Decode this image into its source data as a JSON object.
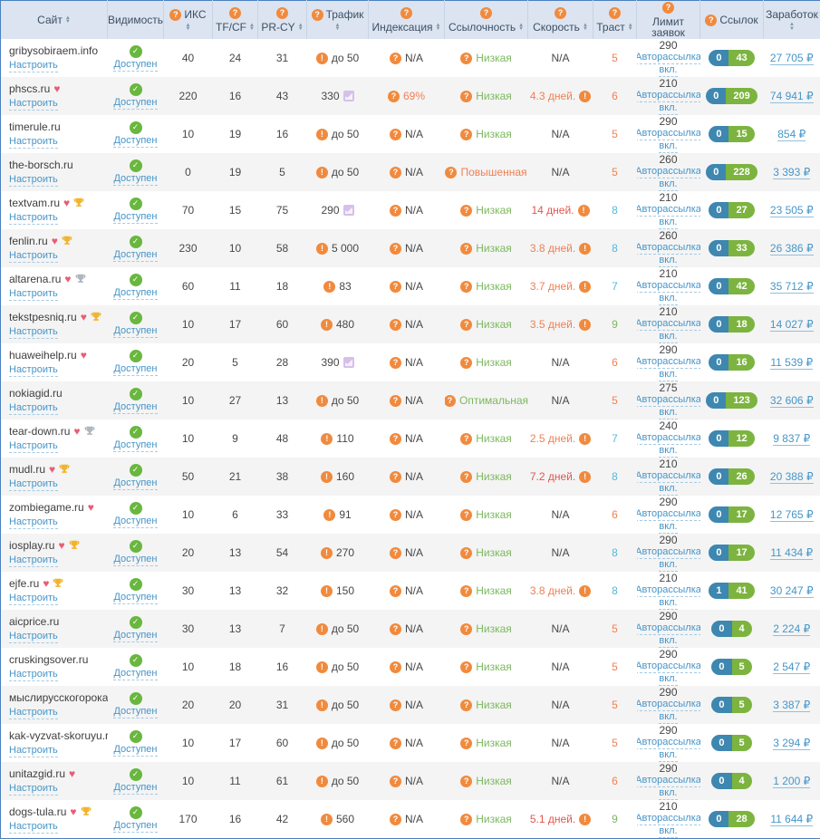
{
  "header": {
    "columns": [
      {
        "label": "Сайт",
        "q": false,
        "sort": true
      },
      {
        "label": "Видимость",
        "q": false,
        "sort": false
      },
      {
        "label": "ИКС",
        "q": true,
        "sort": true
      },
      {
        "label": "TF/CF",
        "q": true,
        "sort": true
      },
      {
        "label": "PR-CY",
        "q": true,
        "sort": true
      },
      {
        "label": "Трафик",
        "q": true,
        "sort": true
      },
      {
        "label": "Индексация",
        "q": true,
        "sort": true
      },
      {
        "label": "Ссылочность",
        "q": true,
        "sort": true
      },
      {
        "label": "Скорость",
        "q": true,
        "sort": true
      },
      {
        "label": "Траст",
        "q": true,
        "sort": true
      },
      {
        "label": "Лимит заявок",
        "q": true,
        "sort": false
      },
      {
        "label": "Ссылок",
        "q": true,
        "sort": false
      },
      {
        "label": "Заработок",
        "q": false,
        "sort": true
      }
    ]
  },
  "labels": {
    "configure": "Настроить",
    "available": "Доступен",
    "autoship": "Авторассылка",
    "autoship_on": "вкл."
  },
  "rows": [
    {
      "site": "gribysobiraem.info",
      "heart": false,
      "trophy": "none",
      "iks": "40",
      "tfcf": "24",
      "prcy": "31",
      "traffic": {
        "text": "до 50",
        "icon": "warn"
      },
      "indexation": {
        "text": "N/A",
        "color": "dark"
      },
      "linkness": {
        "text": "Низкая",
        "color": "green"
      },
      "speed": {
        "text": "N/A",
        "color": "dark",
        "warn": false
      },
      "trust": {
        "value": "5",
        "color": "orange"
      },
      "limit": {
        "value": "290"
      },
      "links": {
        "blue": "0",
        "green": "43"
      },
      "earnings": "27 705 ₽"
    },
    {
      "site": "phscs.ru",
      "heart": true,
      "trophy": "none",
      "iks": "220",
      "tfcf": "16",
      "prcy": "43",
      "traffic": {
        "text": "330",
        "icon": "chart"
      },
      "indexation": {
        "text": "69%",
        "color": "orange"
      },
      "linkness": {
        "text": "Низкая",
        "color": "green"
      },
      "speed": {
        "text": "4.3 дней.",
        "color": "orange",
        "warn": true
      },
      "trust": {
        "value": "6",
        "color": "orange"
      },
      "limit": {
        "value": "210"
      },
      "links": {
        "blue": "0",
        "green": "209"
      },
      "earnings": "74 941 ₽"
    },
    {
      "site": "timerule.ru",
      "heart": false,
      "trophy": "none",
      "iks": "10",
      "tfcf": "19",
      "prcy": "16",
      "traffic": {
        "text": "до 50",
        "icon": "warn"
      },
      "indexation": {
        "text": "N/A",
        "color": "dark"
      },
      "linkness": {
        "text": "Низкая",
        "color": "green"
      },
      "speed": {
        "text": "N/A",
        "color": "dark",
        "warn": false
      },
      "trust": {
        "value": "5",
        "color": "orange"
      },
      "limit": {
        "value": "290"
      },
      "links": {
        "blue": "0",
        "green": "15"
      },
      "earnings": "854 ₽"
    },
    {
      "site": "the-borsch.ru",
      "heart": false,
      "trophy": "none",
      "iks": "0",
      "tfcf": "19",
      "prcy": "5",
      "traffic": {
        "text": "до 50",
        "icon": "warn"
      },
      "indexation": {
        "text": "N/A",
        "color": "dark"
      },
      "linkness": {
        "text": "Повышенная",
        "color": "orange"
      },
      "speed": {
        "text": "N/A",
        "color": "dark",
        "warn": false
      },
      "trust": {
        "value": "5",
        "color": "orange"
      },
      "limit": {
        "value": "260"
      },
      "links": {
        "blue": "0",
        "green": "228"
      },
      "earnings": "3 393 ₽"
    },
    {
      "site": "textvam.ru",
      "heart": true,
      "trophy": "gold",
      "iks": "70",
      "tfcf": "15",
      "prcy": "75",
      "traffic": {
        "text": "290",
        "icon": "chart"
      },
      "indexation": {
        "text": "N/A",
        "color": "dark"
      },
      "linkness": {
        "text": "Низкая",
        "color": "green"
      },
      "speed": {
        "text": "14 дней.",
        "color": "red",
        "warn": true
      },
      "trust": {
        "value": "8",
        "color": "blue"
      },
      "limit": {
        "value": "210"
      },
      "links": {
        "blue": "0",
        "green": "27"
      },
      "earnings": "23 505 ₽"
    },
    {
      "site": "fenlin.ru",
      "heart": true,
      "trophy": "gold",
      "iks": "230",
      "tfcf": "10",
      "prcy": "58",
      "traffic": {
        "text": "5 000",
        "icon": "warn"
      },
      "indexation": {
        "text": "N/A",
        "color": "dark"
      },
      "linkness": {
        "text": "Низкая",
        "color": "green"
      },
      "speed": {
        "text": "3.8 дней.",
        "color": "orange",
        "warn": true
      },
      "trust": {
        "value": "8",
        "color": "blue"
      },
      "limit": {
        "value": "260"
      },
      "links": {
        "blue": "0",
        "green": "33"
      },
      "earnings": "26 386 ₽"
    },
    {
      "site": "altarena.ru",
      "heart": true,
      "trophy": "silver",
      "iks": "60",
      "tfcf": "11",
      "prcy": "18",
      "traffic": {
        "text": "83",
        "icon": "warn"
      },
      "indexation": {
        "text": "N/A",
        "color": "dark"
      },
      "linkness": {
        "text": "Низкая",
        "color": "green"
      },
      "speed": {
        "text": "3.7 дней.",
        "color": "orange",
        "warn": true
      },
      "trust": {
        "value": "7",
        "color": "blue"
      },
      "limit": {
        "value": "210"
      },
      "links": {
        "blue": "0",
        "green": "42"
      },
      "earnings": "35 712 ₽"
    },
    {
      "site": "tekstpesniq.ru",
      "heart": true,
      "trophy": "gold",
      "iks": "10",
      "tfcf": "17",
      "prcy": "60",
      "traffic": {
        "text": "480",
        "icon": "warn"
      },
      "indexation": {
        "text": "N/A",
        "color": "dark"
      },
      "linkness": {
        "text": "Низкая",
        "color": "green"
      },
      "speed": {
        "text": "3.5 дней.",
        "color": "orange",
        "warn": true
      },
      "trust": {
        "value": "9",
        "color": "green"
      },
      "limit": {
        "value": "210"
      },
      "links": {
        "blue": "0",
        "green": "18"
      },
      "earnings": "14 027 ₽"
    },
    {
      "site": "huaweihelp.ru",
      "heart": true,
      "trophy": "none",
      "iks": "20",
      "tfcf": "5",
      "prcy": "28",
      "traffic": {
        "text": "390",
        "icon": "chart"
      },
      "indexation": {
        "text": "N/A",
        "color": "dark"
      },
      "linkness": {
        "text": "Низкая",
        "color": "green"
      },
      "speed": {
        "text": "N/A",
        "color": "dark",
        "warn": false
      },
      "trust": {
        "value": "6",
        "color": "orange"
      },
      "limit": {
        "value": "290"
      },
      "links": {
        "blue": "0",
        "green": "16"
      },
      "earnings": "11 539 ₽"
    },
    {
      "site": "nokiagid.ru",
      "heart": false,
      "trophy": "none",
      "iks": "10",
      "tfcf": "27",
      "prcy": "13",
      "traffic": {
        "text": "до 50",
        "icon": "warn"
      },
      "indexation": {
        "text": "N/A",
        "color": "dark"
      },
      "linkness": {
        "text": "Оптимальная",
        "color": "green"
      },
      "speed": {
        "text": "N/A",
        "color": "dark",
        "warn": false
      },
      "trust": {
        "value": "5",
        "color": "orange"
      },
      "limit": {
        "value": "275"
      },
      "links": {
        "blue": "0",
        "green": "123"
      },
      "earnings": "32 606 ₽"
    },
    {
      "site": "tear-down.ru",
      "heart": true,
      "trophy": "silver",
      "iks": "10",
      "tfcf": "9",
      "prcy": "48",
      "traffic": {
        "text": "110",
        "icon": "warn"
      },
      "indexation": {
        "text": "N/A",
        "color": "dark"
      },
      "linkness": {
        "text": "Низкая",
        "color": "green"
      },
      "speed": {
        "text": "2.5 дней.",
        "color": "orange",
        "warn": true
      },
      "trust": {
        "value": "7",
        "color": "blue"
      },
      "limit": {
        "value": "240"
      },
      "links": {
        "blue": "0",
        "green": "12"
      },
      "earnings": "9 837 ₽"
    },
    {
      "site": "mudl.ru",
      "heart": true,
      "trophy": "gold",
      "iks": "50",
      "tfcf": "21",
      "prcy": "38",
      "traffic": {
        "text": "160",
        "icon": "warn"
      },
      "indexation": {
        "text": "N/A",
        "color": "dark"
      },
      "linkness": {
        "text": "Низкая",
        "color": "green"
      },
      "speed": {
        "text": "7.2 дней.",
        "color": "red",
        "warn": true
      },
      "trust": {
        "value": "8",
        "color": "blue"
      },
      "limit": {
        "value": "210"
      },
      "links": {
        "blue": "0",
        "green": "26"
      },
      "earnings": "20 388 ₽"
    },
    {
      "site": "zombiegame.ru",
      "heart": true,
      "trophy": "none",
      "iks": "10",
      "tfcf": "6",
      "prcy": "33",
      "traffic": {
        "text": "91",
        "icon": "warn"
      },
      "indexation": {
        "text": "N/A",
        "color": "dark"
      },
      "linkness": {
        "text": "Низкая",
        "color": "green"
      },
      "speed": {
        "text": "N/A",
        "color": "dark",
        "warn": false
      },
      "trust": {
        "value": "6",
        "color": "orange"
      },
      "limit": {
        "value": "290"
      },
      "links": {
        "blue": "0",
        "green": "17"
      },
      "earnings": "12 765 ₽"
    },
    {
      "site": "iosplay.ru",
      "heart": true,
      "trophy": "gold",
      "iks": "20",
      "tfcf": "13",
      "prcy": "54",
      "traffic": {
        "text": "270",
        "icon": "warn"
      },
      "indexation": {
        "text": "N/A",
        "color": "dark"
      },
      "linkness": {
        "text": "Низкая",
        "color": "green"
      },
      "speed": {
        "text": "N/A",
        "color": "dark",
        "warn": false
      },
      "trust": {
        "value": "8",
        "color": "blue"
      },
      "limit": {
        "value": "290"
      },
      "links": {
        "blue": "0",
        "green": "17"
      },
      "earnings": "11 434 ₽"
    },
    {
      "site": "ejfe.ru",
      "heart": true,
      "trophy": "gold",
      "iks": "30",
      "tfcf": "13",
      "prcy": "32",
      "traffic": {
        "text": "150",
        "icon": "warn"
      },
      "indexation": {
        "text": "N/A",
        "color": "dark"
      },
      "linkness": {
        "text": "Низкая",
        "color": "green"
      },
      "speed": {
        "text": "3.8 дней.",
        "color": "orange",
        "warn": true
      },
      "trust": {
        "value": "8",
        "color": "blue"
      },
      "limit": {
        "value": "210"
      },
      "links": {
        "blue": "1",
        "green": "41"
      },
      "earnings": "30 247 ₽"
    },
    {
      "site": "aicprice.ru",
      "heart": false,
      "trophy": "none",
      "iks": "30",
      "tfcf": "13",
      "prcy": "7",
      "traffic": {
        "text": "до 50",
        "icon": "warn"
      },
      "indexation": {
        "text": "N/A",
        "color": "dark"
      },
      "linkness": {
        "text": "Низкая",
        "color": "green"
      },
      "speed": {
        "text": "N/A",
        "color": "dark",
        "warn": false
      },
      "trust": {
        "value": "5",
        "color": "orange"
      },
      "limit": {
        "value": "290"
      },
      "links": {
        "blue": "0",
        "green": "4"
      },
      "earnings": "2 224 ₽"
    },
    {
      "site": "cruskingsover.ru",
      "heart": false,
      "trophy": "none",
      "iks": "10",
      "tfcf": "18",
      "prcy": "16",
      "traffic": {
        "text": "до 50",
        "icon": "warn"
      },
      "indexation": {
        "text": "N/A",
        "color": "dark"
      },
      "linkness": {
        "text": "Низкая",
        "color": "green"
      },
      "speed": {
        "text": "N/A",
        "color": "dark",
        "warn": false
      },
      "trust": {
        "value": "5",
        "color": "orange"
      },
      "limit": {
        "value": "290"
      },
      "links": {
        "blue": "0",
        "green": "5"
      },
      "earnings": "2 547 ₽"
    },
    {
      "site": "мыслирусскогорока.рф",
      "heart": false,
      "trophy": "none",
      "iks": "20",
      "tfcf": "20",
      "prcy": "31",
      "traffic": {
        "text": "до 50",
        "icon": "warn"
      },
      "indexation": {
        "text": "N/A",
        "color": "dark"
      },
      "linkness": {
        "text": "Низкая",
        "color": "green"
      },
      "speed": {
        "text": "N/A",
        "color": "dark",
        "warn": false
      },
      "trust": {
        "value": "5",
        "color": "orange"
      },
      "limit": {
        "value": "290"
      },
      "links": {
        "blue": "0",
        "green": "5"
      },
      "earnings": "3 387 ₽"
    },
    {
      "site": "kak-vyzvat-skoruyu.ru",
      "heart": false,
      "trophy": "none",
      "iks": "10",
      "tfcf": "17",
      "prcy": "60",
      "traffic": {
        "text": "до 50",
        "icon": "warn"
      },
      "indexation": {
        "text": "N/A",
        "color": "dark"
      },
      "linkness": {
        "text": "Низкая",
        "color": "green"
      },
      "speed": {
        "text": "N/A",
        "color": "dark",
        "warn": false
      },
      "trust": {
        "value": "5",
        "color": "orange"
      },
      "limit": {
        "value": "290"
      },
      "links": {
        "blue": "0",
        "green": "5"
      },
      "earnings": "3 294 ₽"
    },
    {
      "site": "unitazgid.ru",
      "heart": true,
      "trophy": "none",
      "iks": "10",
      "tfcf": "11",
      "prcy": "61",
      "traffic": {
        "text": "до 50",
        "icon": "warn"
      },
      "indexation": {
        "text": "N/A",
        "color": "dark"
      },
      "linkness": {
        "text": "Низкая",
        "color": "green"
      },
      "speed": {
        "text": "N/A",
        "color": "dark",
        "warn": false
      },
      "trust": {
        "value": "6",
        "color": "orange"
      },
      "limit": {
        "value": "290"
      },
      "links": {
        "blue": "0",
        "green": "4"
      },
      "earnings": "1 200 ₽"
    },
    {
      "site": "dogs-tula.ru",
      "heart": true,
      "trophy": "gold",
      "iks": "170",
      "tfcf": "16",
      "prcy": "42",
      "traffic": {
        "text": "560",
        "icon": "warn"
      },
      "indexation": {
        "text": "N/A",
        "color": "dark"
      },
      "linkness": {
        "text": "Низкая",
        "color": "green"
      },
      "speed": {
        "text": "5.1 дней.",
        "color": "red",
        "warn": true
      },
      "trust": {
        "value": "9",
        "color": "green"
      },
      "limit": {
        "value": "210"
      },
      "links": {
        "blue": "0",
        "green": "28"
      },
      "earnings": "11 644 ₽"
    }
  ]
}
